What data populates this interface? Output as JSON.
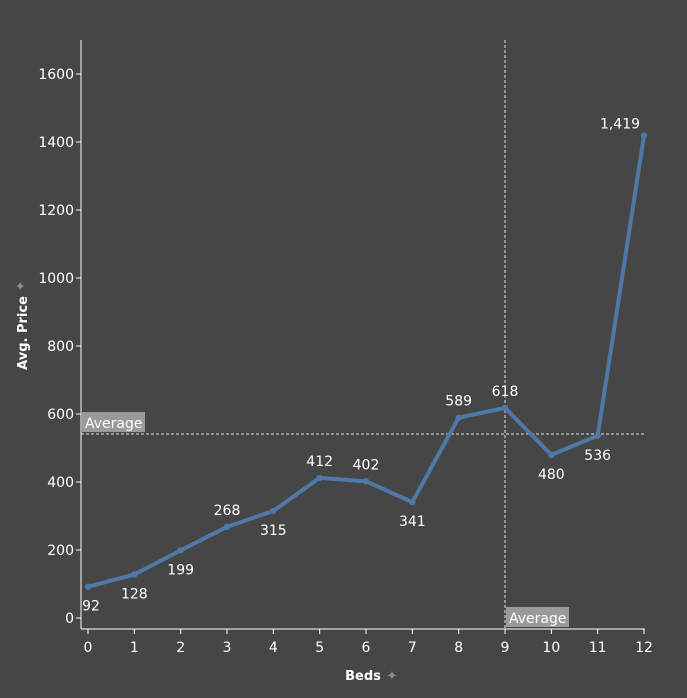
{
  "chart_data": {
    "type": "line",
    "xlabel": "Beds",
    "ylabel": "Avg. Price",
    "x": [
      0,
      1,
      2,
      3,
      4,
      5,
      6,
      7,
      8,
      9,
      10,
      11,
      12
    ],
    "series": [
      {
        "values": [
          92,
          128,
          199,
          268,
          315,
          412,
          402,
          341,
          589,
          618,
          480,
          536,
          1419
        ],
        "labels": [
          "92",
          "128",
          "199",
          "268",
          "315",
          "412",
          "402",
          "341",
          "589",
          "618",
          "480",
          "536",
          "1,419"
        ],
        "color": "#4e79a7"
      }
    ],
    "xlim": [
      0,
      12
    ],
    "ylim": [
      0,
      1700
    ],
    "y_ticks": [
      0,
      200,
      400,
      600,
      800,
      1000,
      1200,
      1400,
      1600
    ],
    "x_ticks": [
      0,
      1,
      2,
      3,
      4,
      5,
      6,
      7,
      8,
      9,
      10,
      11,
      12
    ],
    "reference_lines": [
      {
        "axis": "y",
        "value": 541,
        "label": "Average"
      },
      {
        "axis": "x",
        "value": 9,
        "label": "Average"
      }
    ],
    "grid": false,
    "background": "#464646"
  }
}
